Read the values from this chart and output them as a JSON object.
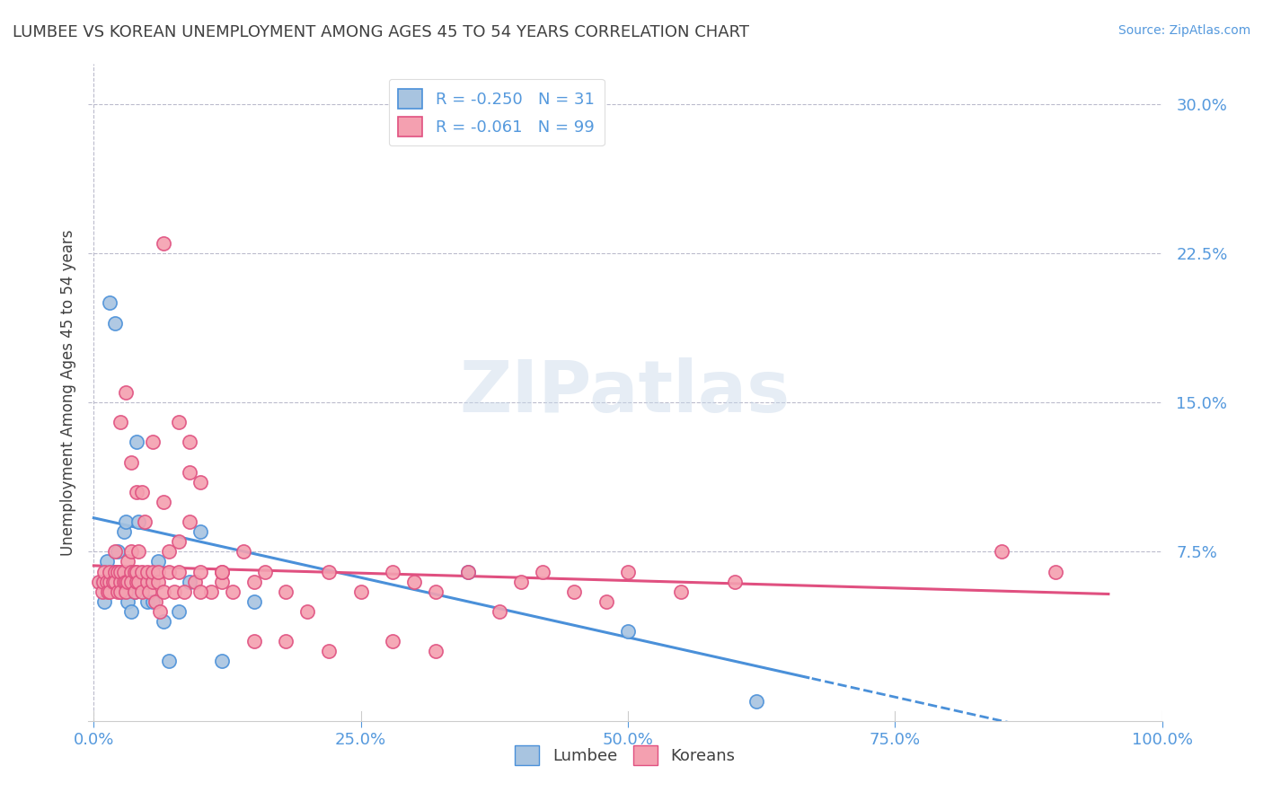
{
  "title": "LUMBEE VS KOREAN UNEMPLOYMENT AMONG AGES 45 TO 54 YEARS CORRELATION CHART",
  "source": "Source: ZipAtlas.com",
  "ylabel": "Unemployment Among Ages 45 to 54 years",
  "xlabel": "",
  "watermark": "ZIPatlas",
  "lumbee_R": -0.25,
  "lumbee_N": 31,
  "korean_R": -0.061,
  "korean_N": 99,
  "lumbee_color": "#a8c4e0",
  "korean_color": "#f4a0b0",
  "lumbee_line_color": "#4a90d9",
  "korean_line_color": "#e05080",
  "title_color": "#404040",
  "axis_label_color": "#5599dd",
  "background_color": "#ffffff",
  "lumbee_x": [
    0.008,
    0.01,
    0.012,
    0.015,
    0.02,
    0.022,
    0.025,
    0.025,
    0.028,
    0.03,
    0.03,
    0.032,
    0.035,
    0.035,
    0.038,
    0.04,
    0.042,
    0.045,
    0.05,
    0.055,
    0.06,
    0.065,
    0.07,
    0.08,
    0.09,
    0.1,
    0.12,
    0.15,
    0.35,
    0.5,
    0.62
  ],
  "lumbee_y": [
    0.06,
    0.05,
    0.07,
    0.2,
    0.19,
    0.075,
    0.06,
    0.055,
    0.085,
    0.09,
    0.055,
    0.05,
    0.045,
    0.065,
    0.055,
    0.13,
    0.09,
    0.06,
    0.05,
    0.05,
    0.07,
    0.04,
    0.02,
    0.045,
    0.06,
    0.085,
    0.02,
    0.05,
    0.065,
    0.035,
    0.0
  ],
  "korean_x": [
    0.005,
    0.008,
    0.009,
    0.01,
    0.012,
    0.013,
    0.015,
    0.015,
    0.015,
    0.018,
    0.02,
    0.02,
    0.022,
    0.022,
    0.025,
    0.025,
    0.025,
    0.028,
    0.028,
    0.03,
    0.03,
    0.032,
    0.032,
    0.035,
    0.035,
    0.035,
    0.038,
    0.038,
    0.04,
    0.04,
    0.042,
    0.042,
    0.045,
    0.045,
    0.048,
    0.05,
    0.05,
    0.052,
    0.055,
    0.055,
    0.058,
    0.06,
    0.06,
    0.062,
    0.065,
    0.065,
    0.07,
    0.07,
    0.075,
    0.08,
    0.08,
    0.085,
    0.09,
    0.09,
    0.095,
    0.1,
    0.1,
    0.11,
    0.12,
    0.12,
    0.13,
    0.14,
    0.15,
    0.16,
    0.18,
    0.2,
    0.22,
    0.25,
    0.28,
    0.3,
    0.32,
    0.35,
    0.38,
    0.4,
    0.42,
    0.45,
    0.48,
    0.5,
    0.55,
    0.6,
    0.02,
    0.025,
    0.03,
    0.035,
    0.04,
    0.045,
    0.055,
    0.065,
    0.08,
    0.09,
    0.1,
    0.12,
    0.15,
    0.18,
    0.22,
    0.28,
    0.32,
    0.85,
    0.9
  ],
  "korean_y": [
    0.06,
    0.055,
    0.06,
    0.065,
    0.06,
    0.055,
    0.06,
    0.065,
    0.055,
    0.06,
    0.065,
    0.06,
    0.055,
    0.065,
    0.06,
    0.055,
    0.065,
    0.06,
    0.065,
    0.06,
    0.055,
    0.06,
    0.07,
    0.065,
    0.06,
    0.075,
    0.055,
    0.065,
    0.06,
    0.065,
    0.06,
    0.075,
    0.055,
    0.065,
    0.09,
    0.06,
    0.065,
    0.055,
    0.06,
    0.065,
    0.05,
    0.06,
    0.065,
    0.045,
    0.055,
    0.1,
    0.065,
    0.075,
    0.055,
    0.065,
    0.14,
    0.055,
    0.09,
    0.13,
    0.06,
    0.065,
    0.11,
    0.055,
    0.06,
    0.065,
    0.055,
    0.075,
    0.06,
    0.065,
    0.055,
    0.045,
    0.065,
    0.055,
    0.065,
    0.06,
    0.055,
    0.065,
    0.045,
    0.06,
    0.065,
    0.055,
    0.05,
    0.065,
    0.055,
    0.06,
    0.075,
    0.14,
    0.155,
    0.12,
    0.105,
    0.105,
    0.13,
    0.23,
    0.08,
    0.115,
    0.055,
    0.065,
    0.03,
    0.03,
    0.025,
    0.03,
    0.025,
    0.075,
    0.065
  ],
  "ylim": [
    -0.01,
    0.32
  ],
  "xlim": [
    -0.005,
    1.0
  ],
  "yticks": [
    0.0,
    0.075,
    0.15,
    0.225,
    0.3
  ],
  "yticklabels": [
    "",
    "7.5%",
    "15.0%",
    "22.5%",
    "30.0%"
  ],
  "xticks": [
    0.0,
    0.25,
    0.5,
    0.75,
    1.0
  ],
  "xticklabels": [
    "0.0%",
    "25.0%",
    "50.0%",
    "75.0%",
    "100.0%"
  ],
  "lumbee_intercept": 0.092,
  "lumbee_slope": -0.12,
  "korean_intercept": 0.068,
  "korean_slope": -0.015
}
